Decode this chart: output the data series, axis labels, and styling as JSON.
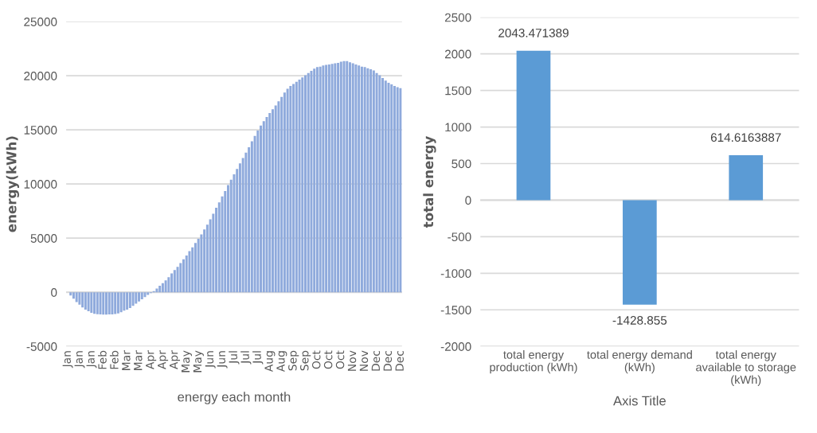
{
  "chart_data": [
    {
      "type": "bar",
      "xlabel": "energy each month",
      "ylabel": "energy(kWh)",
      "color": "#8faadc",
      "categories": [
        "Jan",
        null,
        null,
        null,
        "Jan",
        null,
        null,
        null,
        "Jan",
        null,
        null,
        null,
        "Feb",
        null,
        null,
        null,
        "Feb",
        null,
        null,
        null,
        "Mar",
        null,
        null,
        null,
        "Mar",
        null,
        null,
        null,
        "Apr",
        null,
        null,
        null,
        "Apr",
        null,
        null,
        null,
        "Apr",
        null,
        null,
        null,
        "May",
        null,
        null,
        null,
        "May",
        null,
        null,
        null,
        "Jun",
        null,
        null,
        null,
        "Jun",
        null,
        null,
        null,
        "Jul",
        null,
        null,
        null,
        "Jul",
        null,
        null,
        null,
        "Jul",
        null,
        null,
        null,
        "Aug",
        null,
        null,
        null,
        "Aug",
        null,
        null,
        null,
        "Sep",
        null,
        null,
        null,
        "Sep",
        null,
        null,
        null,
        "Oct",
        null,
        null,
        null,
        "Oct",
        null,
        null,
        null,
        "Oct",
        null,
        null,
        null,
        "Nov",
        null,
        null,
        null,
        "Nov",
        null,
        null,
        null,
        "Dec",
        null,
        null,
        null,
        "Dec",
        null,
        null,
        null,
        "Dec"
      ],
      "values": [
        0,
        -300,
        -600,
        -900,
        -1150,
        -1400,
        -1600,
        -1750,
        -1900,
        -1980,
        -2030,
        -2050,
        -2060,
        -2060,
        -2050,
        -2040,
        -2000,
        -1950,
        -1850,
        -1700,
        -1600,
        -1450,
        -1250,
        -1050,
        -850,
        -650,
        -450,
        -250,
        -80,
        100,
        350,
        600,
        850,
        1100,
        1400,
        1750,
        2050,
        2350,
        2700,
        3050,
        3400,
        3800,
        4150,
        4550,
        4950,
        5350,
        5800,
        6250,
        6750,
        7250,
        7800,
        8300,
        8850,
        9350,
        9900,
        10400,
        10900,
        11400,
        11900,
        12400,
        12900,
        13400,
        13950,
        14450,
        14950,
        15400,
        15800,
        16200,
        16550,
        16900,
        17250,
        17650,
        18050,
        18450,
        18800,
        19050,
        19250,
        19450,
        19650,
        19850,
        20050,
        20250,
        20450,
        20650,
        20800,
        20850,
        20950,
        21000,
        21050,
        21100,
        21150,
        21200,
        21300,
        21350,
        21350,
        21250,
        21150,
        21050,
        20950,
        20850,
        20800,
        20700,
        20600,
        20500,
        20250,
        20050,
        19800,
        19550,
        19350,
        19200,
        19050,
        18950,
        18850
      ],
      "ylim": [
        -5000,
        25000
      ],
      "yticks": [
        -5000,
        0,
        5000,
        10000,
        15000,
        20000,
        25000
      ],
      "grid": "y"
    },
    {
      "type": "bar",
      "xlabel": "Axis Title",
      "ylabel": "total energy",
      "color": "#5b9bd5",
      "categories": [
        "total energy production (kWh)",
        "total energy demand (kWh)",
        "total energy available to storage (kWh)"
      ],
      "values": [
        2043.471389,
        -1428.855,
        614.6163887
      ],
      "data_labels": true,
      "ylim": [
        -2000,
        2500
      ],
      "yticks": [
        -2000,
        -1500,
        -1000,
        -500,
        0,
        500,
        1000,
        1500,
        2000,
        2500
      ],
      "grid": "y"
    }
  ]
}
